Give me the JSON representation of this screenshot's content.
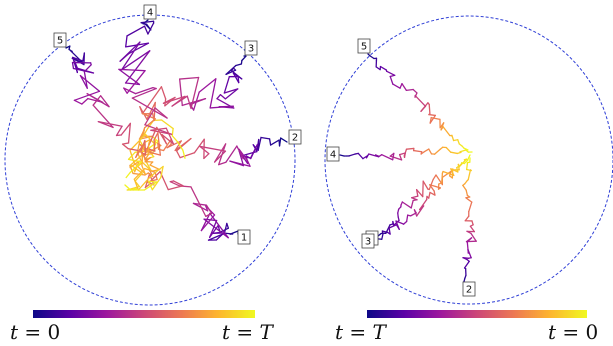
{
  "panels": [
    {
      "id": "left",
      "labels": [
        "1",
        "2",
        "3",
        "4",
        "5"
      ],
      "colorbar": {
        "start_var": "t",
        "start_val": "0",
        "end_var": "t",
        "end_val": "T",
        "direction": "forward"
      }
    },
    {
      "id": "right",
      "labels": [
        "1",
        "2",
        "3",
        "4",
        "5"
      ],
      "colorbar": {
        "start_var": "t",
        "start_val": "T",
        "end_var": "t",
        "end_val": "0",
        "direction": "reverse"
      }
    }
  ],
  "colors": {
    "circle": "#2f3fd6",
    "colormap": [
      "#0d0887",
      "#5c01a6",
      "#9c179e",
      "#cc4778",
      "#ed7953",
      "#fdb42f",
      "#f0f921"
    ]
  }
}
